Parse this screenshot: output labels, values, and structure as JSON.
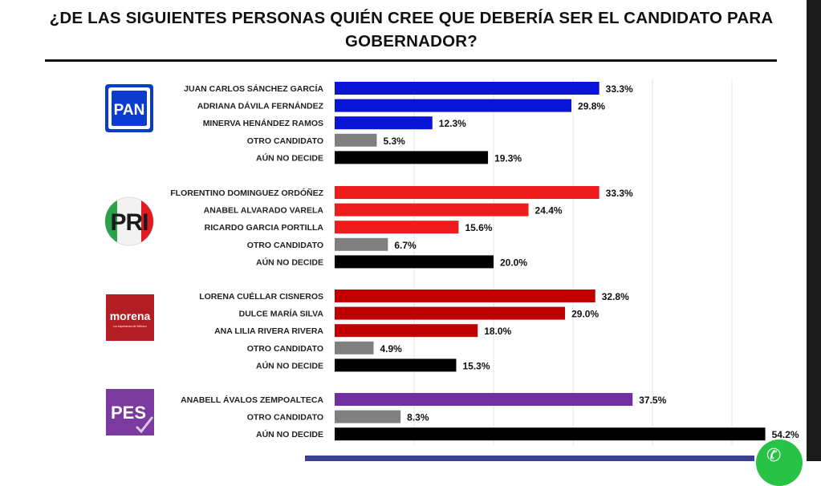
{
  "title_line1": "¿DE LAS SIGUIENTES PERSONAS QUIÉN CREE QUE DEBERÍA SER EL CANDIDATO PARA",
  "title_line2": "GOBERNADOR?",
  "logos": {
    "pan": "PAN",
    "pri": "PRI",
    "morena": "morena",
    "morena_sub": "La esperanza de México",
    "pes": "PES"
  },
  "chart_data": {
    "type": "bar",
    "orientation": "horizontal",
    "unit": "%",
    "xlim": [
      0,
      55
    ],
    "groups": [
      {
        "party": "PAN",
        "color": "#0a14d6",
        "items": [
          {
            "label": "JUAN CARLOS SÁNCHEZ GARCÍA",
            "value": 33.3,
            "display": "33.3%",
            "color": "#0a14d6"
          },
          {
            "label": "ADRIANA DÁVILA FERNÁNDEZ",
            "value": 29.8,
            "display": "29.8%",
            "color": "#0a14d6"
          },
          {
            "label": "MINERVA HENÁNDEZ RAMOS",
            "value": 12.3,
            "display": "12.3%",
            "color": "#0a14d6"
          },
          {
            "label": "OTRO CANDIDATO",
            "value": 5.3,
            "display": "5.3%",
            "color": "#808080"
          },
          {
            "label": "AÚN NO DECIDE",
            "value": 19.3,
            "display": "19.3%",
            "color": "#000000"
          }
        ]
      },
      {
        "party": "PRI",
        "color": "#ee1c1c",
        "items": [
          {
            "label": "FLORENTINO DOMINGUEZ ORDÓÑEZ",
            "value": 33.3,
            "display": "33.3%",
            "color": "#ee1c1c"
          },
          {
            "label": "ANABEL ALVARADO VARELA",
            "value": 24.4,
            "display": "24.4%",
            "color": "#ee1c1c"
          },
          {
            "label": "RICARDO GARCIA PORTILLA",
            "value": 15.6,
            "display": "15.6%",
            "color": "#ee1c1c"
          },
          {
            "label": "OTRO CANDIDATO",
            "value": 6.7,
            "display": "6.7%",
            "color": "#808080"
          },
          {
            "label": "AÚN NO DECIDE",
            "value": 20.0,
            "display": "20.0%",
            "color": "#000000"
          }
        ]
      },
      {
        "party": "MORENA",
        "color": "#c00000",
        "items": [
          {
            "label": "LORENA CUÉLLAR CISNEROS",
            "value": 32.8,
            "display": "32.8%",
            "color": "#c00000"
          },
          {
            "label": "DULCE MARÍA SILVA",
            "value": 29.0,
            "display": "29.0%",
            "color": "#c00000"
          },
          {
            "label": "ANA LILIA RIVERA RIVERA",
            "value": 18.0,
            "display": "18.0%",
            "color": "#c00000"
          },
          {
            "label": "OTRO CANDIDATO",
            "value": 4.9,
            "display": "4.9%",
            "color": "#808080"
          },
          {
            "label": "AÚN NO DECIDE",
            "value": 15.3,
            "display": "15.3%",
            "color": "#000000"
          }
        ]
      },
      {
        "party": "PES",
        "color": "#7030a0",
        "items": [
          {
            "label": "ANABELL ÁVALOS ZEMPOALTECA",
            "value": 37.5,
            "display": "37.5%",
            "color": "#7030a0"
          },
          {
            "label": "OTRO CANDIDATO",
            "value": 8.3,
            "display": "8.3%",
            "color": "#808080"
          },
          {
            "label": "AÚN NO DECIDE",
            "value": 54.2,
            "display": "54.2%",
            "color": "#000000"
          }
        ]
      }
    ]
  }
}
